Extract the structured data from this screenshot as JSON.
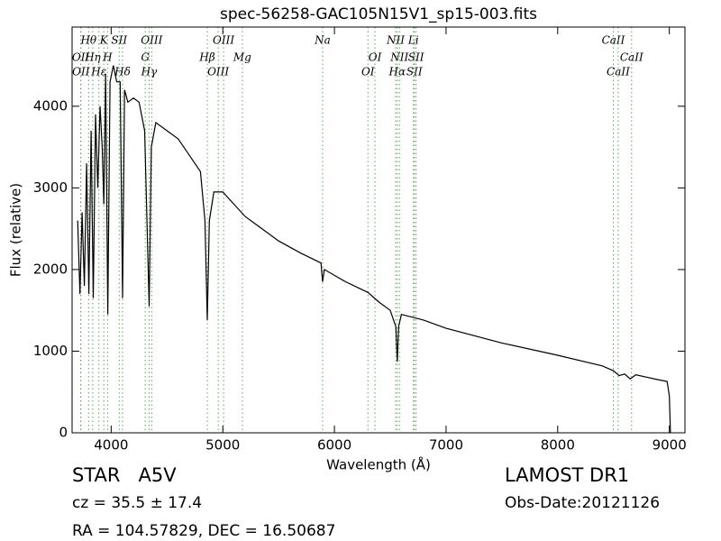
{
  "chart_data": {
    "type": "line",
    "title": "spec-56258-GAC105N15V1_sp15-003.fits",
    "x_label": "Wavelength (Å)",
    "y_label": "Flux (relative)",
    "xlim": [
      3650,
      9140
    ],
    "ylim": [
      0,
      4970
    ],
    "xticks": [
      4000,
      5000,
      6000,
      7000,
      8000,
      9000
    ],
    "yticks": [
      0,
      1000,
      2000,
      3000,
      4000
    ],
    "color": "#000000",
    "line_color": "#55aa55",
    "x": [
      3700,
      3720,
      3740,
      3760,
      3780,
      3800,
      3820,
      3840,
      3860,
      3880,
      3900,
      3920,
      3934,
      3950,
      3970,
      3990,
      4020,
      4050,
      4080,
      4102,
      4120,
      4150,
      4200,
      4250,
      4300,
      4340,
      4360,
      4400,
      4500,
      4600,
      4700,
      4800,
      4840,
      4861,
      4880,
      4920,
      5000,
      5100,
      5200,
      5300,
      5500,
      5700,
      5880,
      5894,
      5910,
      6100,
      6300,
      6400,
      6500,
      6550,
      6563,
      6575,
      6600,
      6800,
      7000,
      7500,
      8000,
      8400,
      8500,
      8550,
      8600,
      8650,
      8700,
      8800,
      8900,
      8980,
      9000,
      9010
    ],
    "values": [
      2600,
      1700,
      2700,
      1800,
      3300,
      1700,
      3700,
      1650,
      3900,
      3000,
      4000,
      3500,
      2800,
      4400,
      1450,
      4300,
      4500,
      4300,
      4300,
      1650,
      4200,
      4050,
      4100,
      4050,
      3700,
      1550,
      3500,
      3800,
      3700,
      3600,
      3400,
      3200,
      2600,
      1380,
      2600,
      2950,
      2950,
      2800,
      2650,
      2550,
      2350,
      2200,
      2080,
      1850,
      2000,
      1850,
      1720,
      1600,
      1500,
      1300,
      870,
      1300,
      1450,
      1380,
      1280,
      1100,
      950,
      820,
      760,
      700,
      720,
      660,
      710,
      680,
      650,
      630,
      450,
      0
    ],
    "lines": [
      {
        "label": "OII",
        "wavelength": 3727
      },
      {
        "label": "Hθ",
        "wavelength": 3798
      },
      {
        "label": "OII",
        "wavelength": 3729
      },
      {
        "label": "Hη",
        "wavelength": 3835
      },
      {
        "label": "K",
        "wavelength": 3934
      },
      {
        "label": "Hε",
        "wavelength": 3890
      },
      {
        "label": "H",
        "wavelength": 3968
      },
      {
        "label": "SII",
        "wavelength": 4072
      },
      {
        "label": "Hδ",
        "wavelength": 4102
      },
      {
        "label": "G",
        "wavelength": 4305
      },
      {
        "label": "OIII",
        "wavelength": 4363
      },
      {
        "label": "Hγ",
        "wavelength": 4340
      },
      {
        "label": "Hβ",
        "wavelength": 4861
      },
      {
        "label": "OIII",
        "wavelength": 5007
      },
      {
        "label": "OIII",
        "wavelength": 4959
      },
      {
        "label": "Mg",
        "wavelength": 5175
      },
      {
        "label": "Na",
        "wavelength": 5894
      },
      {
        "label": "OI",
        "wavelength": 6300
      },
      {
        "label": "OI",
        "wavelength": 6363
      },
      {
        "label": "NII",
        "wavelength": 6548
      },
      {
        "label": "Hα",
        "wavelength": 6563
      },
      {
        "label": "NII",
        "wavelength": 6583
      },
      {
        "label": "Li",
        "wavelength": 6708
      },
      {
        "label": "SII",
        "wavelength": 6716
      },
      {
        "label": "SII",
        "wavelength": 6731
      },
      {
        "label": "CaII",
        "wavelength": 8498
      },
      {
        "label": "CaII",
        "wavelength": 8542
      },
      {
        "label": "CaII",
        "wavelength": 8662
      }
    ],
    "object_class": "STAR   A5V",
    "redshift": "cz = 35.5 ± 17.4",
    "coordinates": "RA = 104.57829, DEC = 16.50687",
    "survey": "LAMOST DR1",
    "obs_date": "Obs-Date:20121126"
  }
}
